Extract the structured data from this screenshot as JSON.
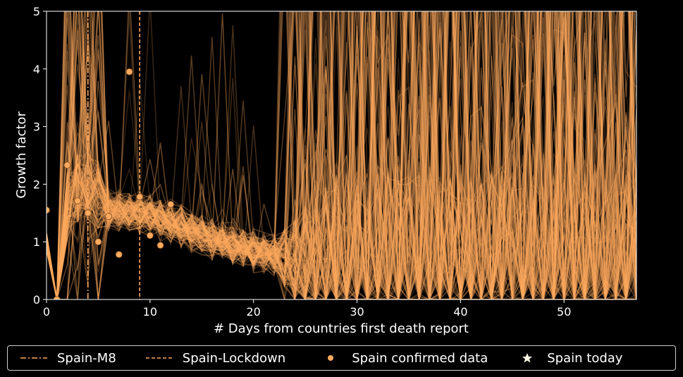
{
  "chart_data": {
    "type": "line",
    "xlabel": "# Days from countries first death report",
    "ylabel": "Growth factor",
    "xlim": [
      0,
      57
    ],
    "ylim": [
      0,
      5
    ],
    "xticks": [
      0,
      10,
      20,
      30,
      40,
      50
    ],
    "yticks": [
      0,
      1,
      2,
      3,
      4,
      5
    ],
    "grid": false,
    "background": "#000000",
    "accent_color": "#ffaa5e",
    "vlines": [
      {
        "name": "Spain-M8",
        "x": 4,
        "style": "dashdot"
      },
      {
        "name": "Spain-Lockdown",
        "x": 9,
        "style": "dashed"
      }
    ],
    "series": [
      {
        "name": "Spain confirmed data",
        "kind": "scatter",
        "x": [
          0,
          1,
          2,
          3,
          4,
          5,
          6,
          7,
          8,
          9,
          10,
          11,
          12
        ],
        "y": [
          1.55,
          0.0,
          2.33,
          1.71,
          1.5,
          1.0,
          1.44,
          0.78,
          3.95,
          1.78,
          1.11,
          0.94,
          1.65
        ]
      },
      {
        "name": "Spain today",
        "kind": "marker",
        "marker": "star"
      }
    ],
    "simulation_trend": {
      "description_points_x": [
        0,
        1,
        2,
        3,
        4,
        5,
        6,
        7,
        8,
        9,
        10,
        12,
        14,
        16,
        18,
        20,
        22,
        24
      ],
      "median_y": [
        1.0,
        0.0,
        1.4,
        1.7,
        1.75,
        1.6,
        1.55,
        1.55,
        1.5,
        1.5,
        1.45,
        1.35,
        1.2,
        1.05,
        0.95,
        0.85,
        0.75,
        0.7
      ]
    },
    "legend": {
      "placement": "bottom",
      "entries": [
        "Spain-M8",
        "Spain-Lockdown",
        "Spain confirmed data",
        "Spain today"
      ]
    }
  }
}
